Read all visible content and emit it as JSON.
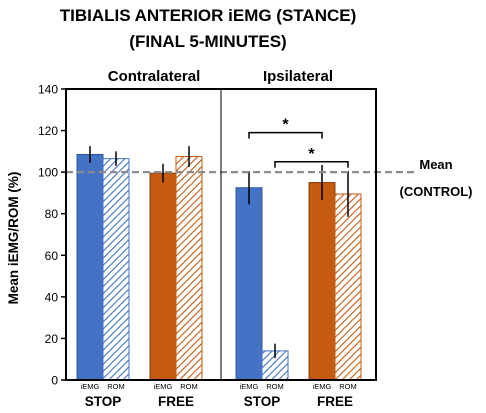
{
  "chart_data": {
    "type": "bar",
    "title_line1": "TIBIALIS ANTERIOR iEMG (STANCE)",
    "title_line2": "(FINAL 5-MINUTES)",
    "ylabel": "Mean iEMG/ROM (%)",
    "ylim": [
      0,
      140
    ],
    "yticks": [
      0,
      20,
      40,
      60,
      80,
      100,
      120,
      140
    ],
    "grid": false,
    "panels": [
      {
        "label": "Contralateral",
        "groups": [
          {
            "label": "STOP",
            "bars": [
              {
                "label": "iEMG",
                "value": 108.5,
                "err": 4,
                "style": "solid-blue"
              },
              {
                "label": "ROM",
                "value": 106.5,
                "err": 3.5,
                "style": "hatch-blue"
              }
            ]
          },
          {
            "label": "FREE",
            "bars": [
              {
                "label": "iEMG",
                "value": 99.5,
                "err": 4.5,
                "style": "solid-orange"
              },
              {
                "label": "ROM",
                "value": 107.5,
                "err": 5,
                "style": "hatch-orange"
              }
            ]
          }
        ]
      },
      {
        "label": "Ipsilateral",
        "groups": [
          {
            "label": "STOP",
            "bars": [
              {
                "label": "iEMG",
                "value": 92.5,
                "err": 8,
                "style": "solid-blue"
              },
              {
                "label": "ROM",
                "value": 14,
                "err": 3.5,
                "style": "hatch-blue"
              }
            ]
          },
          {
            "label": "FREE",
            "bars": [
              {
                "label": "iEMG",
                "value": 95,
                "err": 8.5,
                "style": "solid-orange"
              },
              {
                "label": "ROM",
                "value": 89.5,
                "err": 11,
                "style": "hatch-orange"
              }
            ]
          }
        ]
      }
    ],
    "reference_line": {
      "value": 100,
      "label_line1": "Mean",
      "label_line2": "(CONTROL)",
      "style": "dashed",
      "color": "#8c8c8c"
    },
    "significance": [
      {
        "symbol": "*",
        "from": "Ipsilateral STOP iEMG",
        "to": "Ipsilateral FREE iEMG",
        "y": 119
      },
      {
        "symbol": "*",
        "from": "Ipsilateral STOP ROM",
        "to": "Ipsilateral FREE ROM",
        "y": 105
      }
    ],
    "colors": {
      "blue": "#4472c4",
      "blue_edge": "#2f5597",
      "orange": "#c55a11",
      "orange_edge": "#843c0c"
    }
  }
}
